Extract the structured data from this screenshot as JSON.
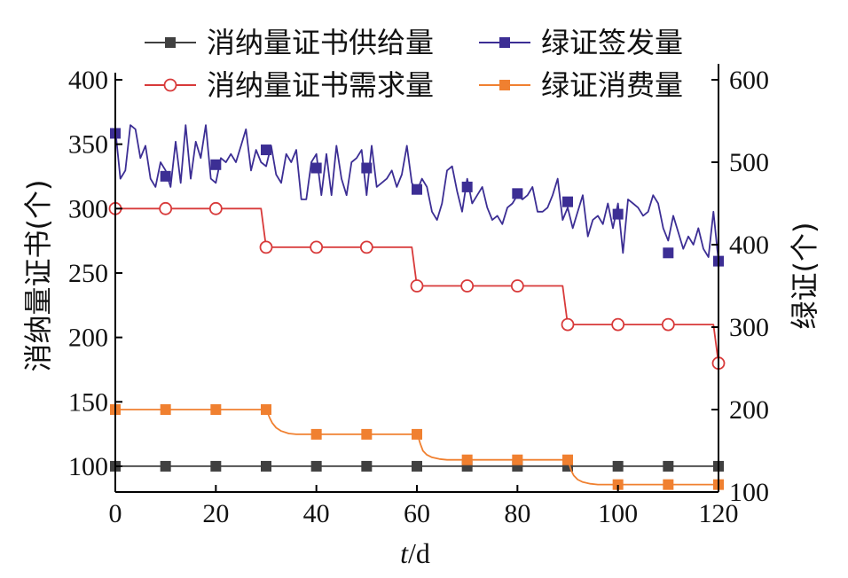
{
  "chart_data": {
    "type": "line",
    "xlabel_var": "t",
    "xlabel_unit": "/d",
    "ylabel_left": "消纳量证书(个)",
    "ylabel_right": "绿证(个)",
    "xlim": [
      0,
      120
    ],
    "ylim_left": [
      80,
      400
    ],
    "ylim_right": [
      100,
      600
    ],
    "x_ticks": [
      "0",
      "20",
      "40",
      "60",
      "80",
      "100",
      "120"
    ],
    "y_left_ticks": [
      "100",
      "150",
      "200",
      "250",
      "300",
      "350",
      "400"
    ],
    "y_right_ticks": [
      "100",
      "200",
      "300",
      "400",
      "500",
      "600"
    ],
    "legend": [
      {
        "name": "消纳量证书供给量",
        "color": "#404040",
        "marker": "square-filled"
      },
      {
        "name": "绿证签发量",
        "color": "#3c2e94",
        "marker": "square-filled"
      },
      {
        "name": "消纳量证书需求量",
        "color": "#d83a3a",
        "marker": "circle-open"
      },
      {
        "name": "绿证消费量",
        "color": "#f08030",
        "marker": "square-filled"
      }
    ],
    "series": [
      {
        "name": "消纳量证书供给量",
        "axis": "left",
        "color": "#404040",
        "marker": "square-filled",
        "line": "solid",
        "x": [
          0,
          120
        ],
        "y": [
          100,
          100
        ],
        "marker_x": [
          0,
          10,
          20,
          30,
          40,
          50,
          60,
          70,
          80,
          90,
          100,
          110,
          120
        ],
        "marker_y": [
          100,
          100,
          100,
          100,
          100,
          100,
          100,
          100,
          100,
          100,
          100,
          100,
          100
        ]
      },
      {
        "name": "消纳量证书需求量",
        "axis": "left",
        "color": "#d83a3a",
        "marker": "circle-open",
        "line": "step",
        "x": [
          0,
          29,
          30,
          59,
          60,
          89,
          90,
          119,
          120
        ],
        "y": [
          300,
          300,
          270,
          270,
          240,
          240,
          210,
          210,
          180
        ],
        "marker_x": [
          0,
          10,
          20,
          30,
          40,
          50,
          60,
          70,
          80,
          90,
          100,
          110,
          120
        ],
        "marker_y": [
          300,
          300,
          300,
          270,
          270,
          270,
          240,
          240,
          240,
          210,
          210,
          210,
          180
        ]
      },
      {
        "name": "绿证签发量",
        "axis": "right",
        "color": "#3c2e94",
        "marker": "square-filled",
        "line": "solid",
        "x": [
          0,
          1,
          2,
          3,
          4,
          5,
          6,
          7,
          8,
          9,
          10,
          11,
          12,
          13,
          14,
          15,
          16,
          17,
          18,
          19,
          20,
          21,
          22,
          23,
          24,
          25,
          26,
          27,
          28,
          29,
          30,
          31,
          32,
          33,
          34,
          35,
          36,
          37,
          38,
          39,
          40,
          41,
          42,
          43,
          44,
          45,
          46,
          47,
          48,
          49,
          50,
          51,
          52,
          53,
          54,
          55,
          56,
          57,
          58,
          59,
          60,
          61,
          62,
          63,
          64,
          65,
          66,
          67,
          68,
          69,
          70,
          71,
          72,
          73,
          74,
          75,
          76,
          77,
          78,
          79,
          80,
          81,
          82,
          83,
          84,
          85,
          86,
          87,
          88,
          89,
          90,
          91,
          92,
          93,
          94,
          95,
          96,
          97,
          98,
          99,
          100,
          101,
          102,
          103,
          104,
          105,
          106,
          107,
          108,
          109,
          110,
          111,
          112,
          113,
          114,
          115,
          116,
          117,
          118,
          119,
          120
        ],
        "y": [
          540,
          480,
          490,
          545,
          540,
          505,
          520,
          480,
          470,
          500,
          490,
          470,
          525,
          475,
          545,
          480,
          525,
          505,
          545,
          480,
          475,
          505,
          500,
          510,
          500,
          520,
          540,
          490,
          515,
          500,
          495,
          520,
          485,
          475,
          510,
          500,
          515,
          455,
          455,
          500,
          510,
          460,
          510,
          460,
          520,
          480,
          460,
          500,
          505,
          515,
          460,
          520,
          470,
          475,
          480,
          490,
          470,
          485,
          520,
          475,
          465,
          480,
          470,
          440,
          430,
          450,
          490,
          495,
          465,
          440,
          480,
          450,
          460,
          470,
          445,
          430,
          435,
          425,
          445,
          450,
          460,
          455,
          460,
          470,
          440,
          440,
          445,
          460,
          480,
          430,
          445,
          420,
          440,
          460,
          410,
          430,
          435,
          425,
          450,
          420,
          450,
          390,
          455,
          450,
          445,
          435,
          440,
          460,
          450,
          420,
          405,
          435,
          415,
          395,
          410,
          400,
          420,
          395,
          385,
          440,
          380
        ],
        "marker_x": [
          0,
          10,
          20,
          30,
          40,
          50,
          60,
          70,
          80,
          90,
          100,
          110,
          120
        ],
        "marker_y": [
          535,
          483,
          497,
          515,
          493,
          493,
          467,
          470,
          462,
          452,
          437,
          390,
          380
        ]
      },
      {
        "name": "绿证消费量",
        "axis": "right",
        "color": "#f08030",
        "marker": "square-filled",
        "line": "smooth-step",
        "x": [
          0,
          30,
          30.3,
          30.7,
          31.2,
          32,
          33,
          34.5,
          36,
          40,
          60,
          60.3,
          60.7,
          61.2,
          62,
          63,
          64.5,
          66,
          70,
          90,
          90.3,
          90.7,
          91.2,
          92,
          93,
          94.5,
          96,
          100,
          120
        ],
        "y": [
          200,
          200,
          196,
          190,
          184,
          178,
          174,
          171,
          170,
          170,
          170,
          166,
          158,
          150,
          145,
          142,
          140,
          139,
          139,
          139,
          134,
          126,
          120,
          115,
          112,
          110,
          109,
          109,
          109
        ],
        "marker_x": [
          0,
          10,
          20,
          30,
          40,
          50,
          60,
          70,
          80,
          90,
          100,
          110,
          120
        ],
        "marker_y": [
          200,
          200,
          200,
          200,
          170,
          170,
          170,
          139,
          139,
          139,
          109,
          109,
          109
        ]
      }
    ]
  }
}
